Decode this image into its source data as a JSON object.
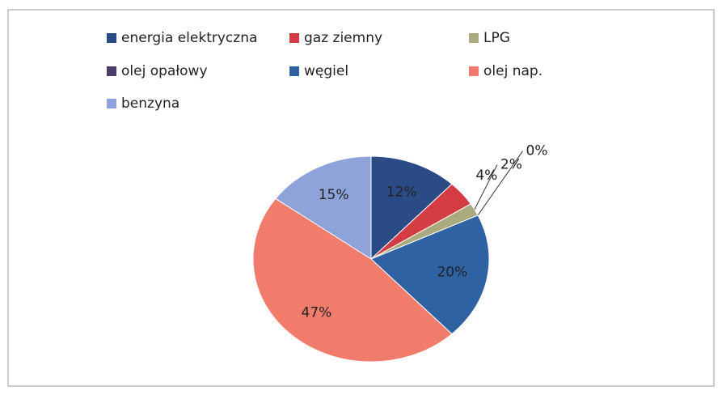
{
  "chart_data": {
    "type": "pie",
    "categories": [
      "energia elektryczna",
      "gaz ziemny",
      "LPG",
      "olej opałowy",
      "węgiel",
      "olej nap.",
      "benzyna"
    ],
    "values": [
      12,
      4,
      2,
      0,
      20,
      47,
      15
    ],
    "value_labels": [
      "12%",
      "4%",
      "2%",
      "0%",
      "20%",
      "47%",
      "15%"
    ],
    "colors": [
      "#2b4b87",
      "#d33c42",
      "#a9ab7e",
      "#4d3d6d",
      "#2f62a3",
      "#f27c6c",
      "#8ea3d9"
    ],
    "legend": "top"
  }
}
